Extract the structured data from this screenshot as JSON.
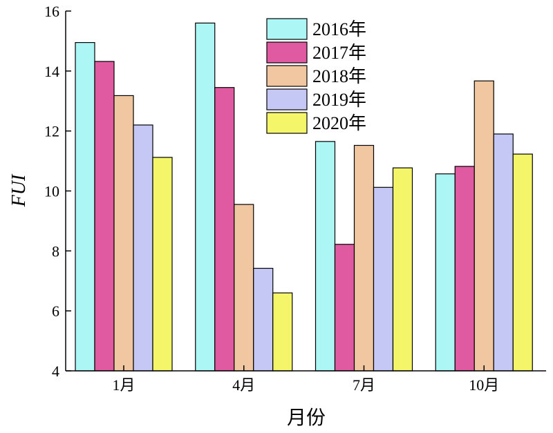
{
  "chart_data": {
    "type": "bar",
    "categories": [
      "1月",
      "4月",
      "7月",
      "10月"
    ],
    "series": [
      {
        "name": "2016年",
        "color": "#adf6f6",
        "values": [
          14.95,
          15.6,
          11.65,
          10.57
        ]
      },
      {
        "name": "2017年",
        "color": "#e05aa2",
        "values": [
          14.32,
          13.45,
          8.22,
          10.82
        ]
      },
      {
        "name": "2018年",
        "color": "#f1c7a2",
        "values": [
          13.18,
          9.55,
          11.52,
          13.67
        ]
      },
      {
        "name": "2019年",
        "color": "#c5c7f5",
        "values": [
          12.2,
          7.42,
          10.12,
          11.9
        ]
      },
      {
        "name": "2020年",
        "color": "#f5f56a",
        "values": [
          11.12,
          6.6,
          10.77,
          11.23
        ]
      }
    ],
    "xlabel": "月份",
    "ylabel": "FUI",
    "ylim": [
      4,
      16
    ],
    "yticks": [
      "4",
      "6",
      "8",
      "10",
      "12",
      "14",
      "16"
    ],
    "legend_position": "top-center",
    "grid": false
  }
}
